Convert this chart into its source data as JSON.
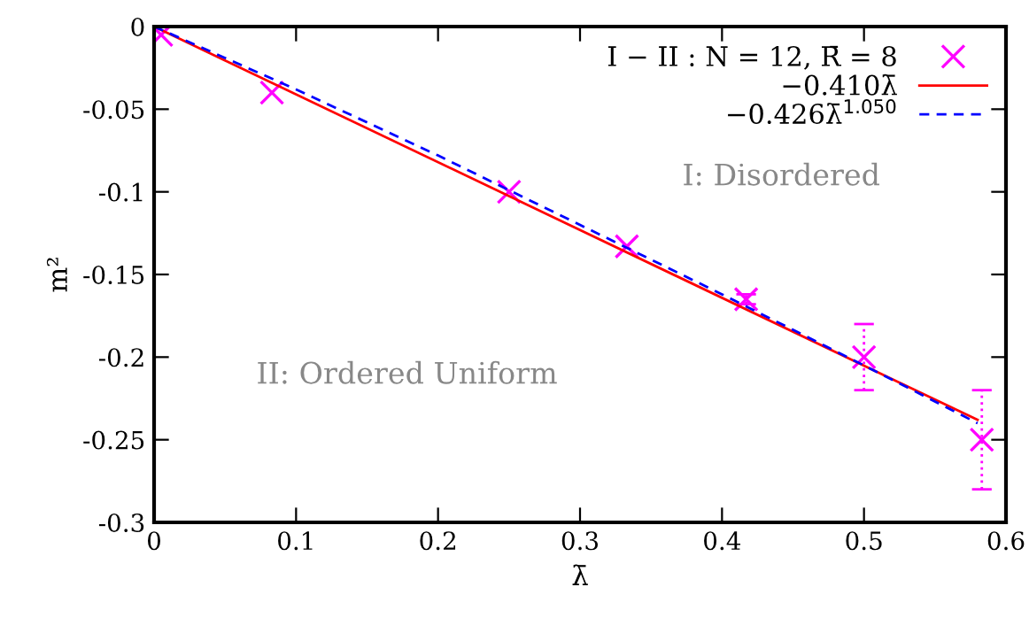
{
  "chart_data": {
    "type": "scatter",
    "xlabel": "λ̄",
    "ylabel": "m²",
    "xlim": [
      0,
      0.6
    ],
    "ylim": [
      -0.3,
      0
    ],
    "xticks": [
      0,
      0.1,
      0.2,
      0.3,
      0.4,
      0.5,
      0.6
    ],
    "yticks": [
      -0.3,
      -0.25,
      -0.2,
      -0.15,
      -0.1,
      -0.05,
      0
    ],
    "legend": "top right",
    "grid": false,
    "series": [
      {
        "name": "I − II : N = 12, R̄ = 8",
        "color": "#ff00ff",
        "marker": "cross",
        "line_style": "dotted",
        "x": [
          0.005,
          0.083,
          0.25,
          0.333,
          0.417,
          0.5,
          0.583
        ],
        "values": [
          -0.005,
          -0.04,
          -0.1,
          -0.133,
          -0.165,
          -0.2,
          -0.25
        ],
        "errors": [
          null,
          null,
          null,
          null,
          0.003,
          0.02,
          0.03
        ]
      },
      {
        "name": "−0.410λ̄",
        "type": "line",
        "color": "#ff0000",
        "line_style": "solid",
        "x": [
          0,
          0.58
        ],
        "values": [
          0,
          -0.238
        ]
      },
      {
        "name": "−0.426λ̄$^{1.050}$",
        "type": "line",
        "color": "#0000ff",
        "line_style": "dashed",
        "x": [
          0,
          0.1,
          0.2,
          0.3,
          0.4,
          0.5,
          0.58
        ],
        "values": [
          0,
          -0.038,
          -0.078,
          -0.12,
          -0.162,
          -0.205,
          -0.24
        ]
      }
    ],
    "annotations": [
      "I: Disordered",
      "II: Ordered Uniform"
    ]
  }
}
